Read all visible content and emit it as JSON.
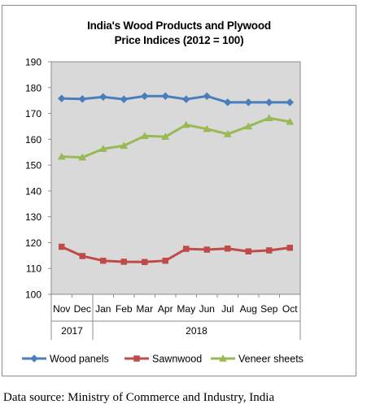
{
  "chart_data": {
    "type": "line",
    "title_line1": "India's Wood Products and Plywood",
    "title_line2": "Price Indices (2012 = 100)",
    "categories": [
      "Nov",
      "Dec",
      "Jan",
      "Feb",
      "Mar",
      "Apr",
      "May",
      "Jun",
      "Jul",
      "Aug",
      "Sep",
      "Oct"
    ],
    "year_groups": [
      {
        "label": "2017",
        "count": 2
      },
      {
        "label": "2018",
        "count": 10
      }
    ],
    "ylim": [
      100,
      190
    ],
    "yticks": [
      100,
      110,
      120,
      130,
      140,
      150,
      160,
      170,
      180,
      190
    ],
    "grid": false,
    "legend_position": "bottom",
    "plot_background": "#d9d9d9",
    "series": [
      {
        "name": "Wood panels",
        "color": "#4a7ebb",
        "marker": "diamond",
        "values": [
          175.8,
          175.6,
          176.4,
          175.5,
          176.7,
          176.7,
          175.5,
          176.7,
          174.3,
          174.3,
          174.3,
          174.3
        ]
      },
      {
        "name": "Sawnwood",
        "color": "#be4b48",
        "marker": "square",
        "values": [
          118.4,
          114.8,
          113.0,
          112.6,
          112.5,
          113.0,
          117.6,
          117.3,
          117.7,
          116.6,
          117.0,
          118.0
        ]
      },
      {
        "name": "Veneer sheets",
        "color": "#98b954",
        "marker": "triangle",
        "values": [
          153.3,
          153.0,
          156.3,
          157.5,
          161.3,
          161.0,
          165.6,
          164.0,
          162.0,
          165.0,
          168.2,
          166.8
        ]
      }
    ]
  },
  "source_note": "Data source: Ministry of Commerce and Industry, India"
}
